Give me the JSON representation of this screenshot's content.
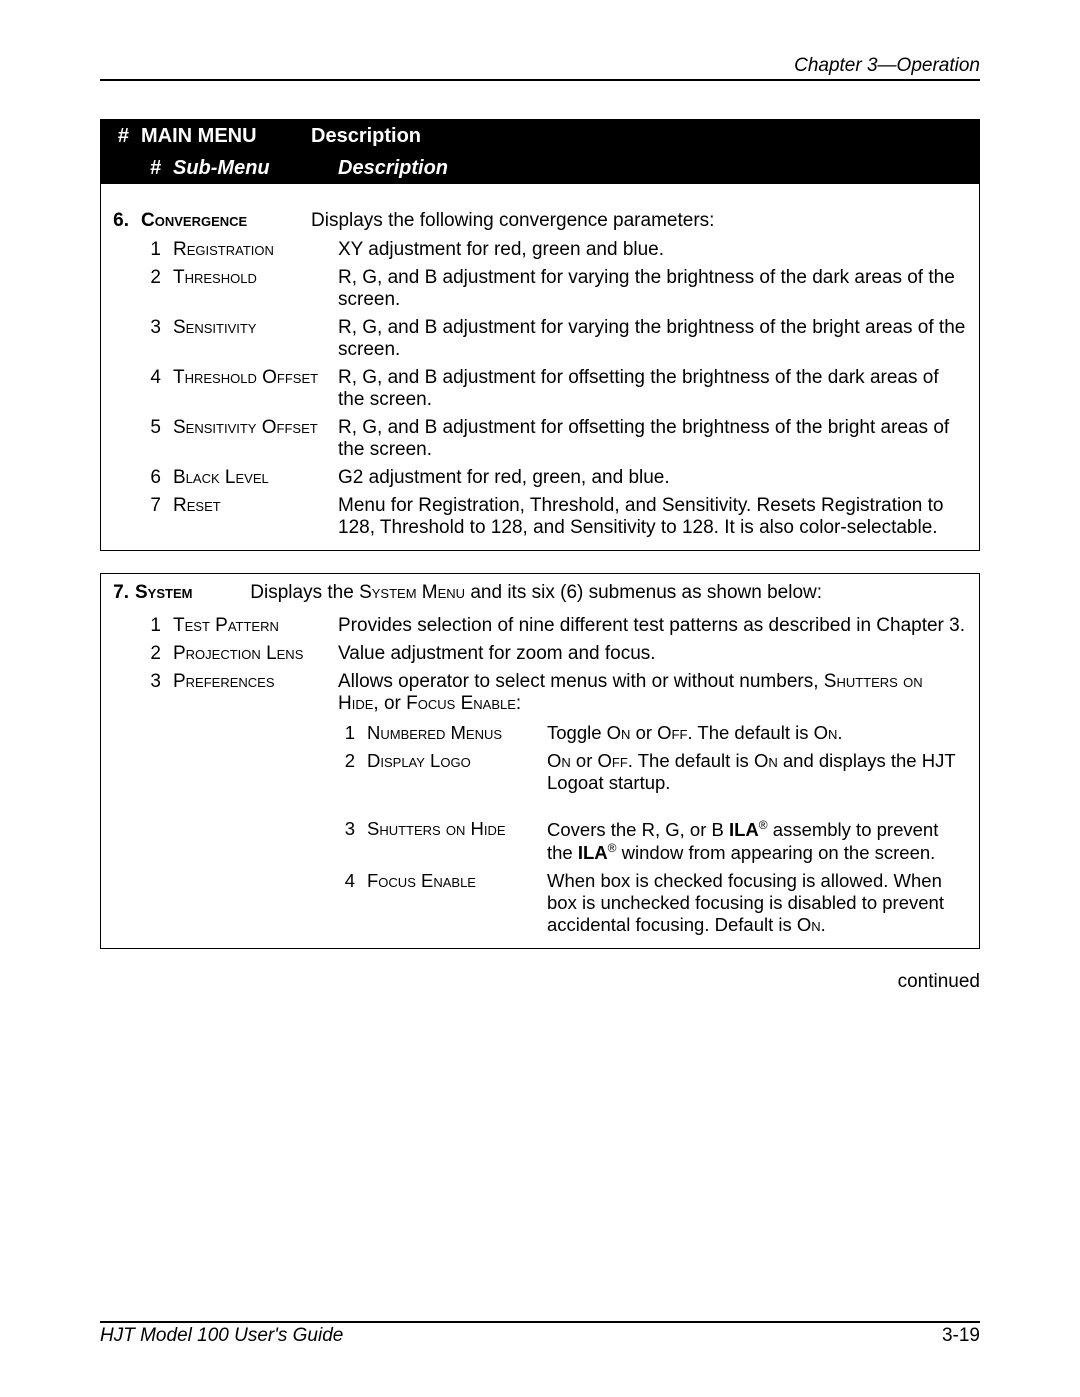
{
  "header": {
    "chapter": "Chapter 3—Operation"
  },
  "tableHead": {
    "c1": "#",
    "c2": "MAIN MENU",
    "c3": "Description",
    "s1": "#",
    "s2": "Sub-Menu",
    "s3": "Description"
  },
  "section6": {
    "num": "6.",
    "name": "Convergence",
    "desc": "Displays the following convergence parameters:",
    "items": [
      {
        "n": "1",
        "label": "Registration",
        "desc": "XY adjustment for red, green and blue."
      },
      {
        "n": "2",
        "label": "Threshold",
        "desc": "R, G, and B adjustment for varying the brightness of the dark areas of the screen."
      },
      {
        "n": "3",
        "label": "Sensitivity",
        "desc": "R, G, and B adjustment for varying the brightness of the bright areas of the screen."
      },
      {
        "n": "4",
        "label": "Threshold Offset",
        "desc": "R, G, and B adjustment for offsetting the brightness of the dark areas of the screen."
      },
      {
        "n": "5",
        "label": "Sensitivity Offset",
        "desc": "R, G, and B adjustment for offsetting the brightness of the bright areas of the screen."
      },
      {
        "n": "6",
        "label": "Black Level",
        "desc": "G2 adjustment for red, green, and blue."
      },
      {
        "n": "7",
        "label": "Reset",
        "desc": "Menu for Registration, Threshold, and Sensitivity. Resets Registration to 128, Threshold to 128, and Sensitivity to 128. It is also color-selectable."
      }
    ]
  },
  "section7": {
    "num": "7.",
    "name": "System",
    "desc_pre": "Displays the ",
    "desc_sc": "System Menu",
    "desc_post": " and its six (6) submenus as shown below:",
    "items": [
      {
        "n": "1",
        "label": "Test Pattern",
        "desc": "Provides selection of nine different test patterns as described in Chapter 3."
      },
      {
        "n": "2",
        "label": "Projection Lens",
        "desc": "Value adjustment for zoom and focus."
      }
    ],
    "prefs": {
      "n": "3",
      "label": "Preferences",
      "desc_pre": "Allows operator to select menus with or without numbers, ",
      "desc_sc1": "Shutters on Hide",
      "desc_mid": ", or ",
      "desc_sc2": "Focus Enable",
      "desc_post": ":",
      "subitems": [
        {
          "n": "1",
          "label": "Numbered Menus",
          "d_pre": "Toggle ",
          "d_sc1": "On",
          "d_mid1": " or ",
          "d_sc2": "Off",
          "d_mid2": ". The default is ",
          "d_sc3": "On",
          "d_post": "."
        },
        {
          "n": "2",
          "label": "Display Logo",
          "d_sc1": "On",
          "d_mid1": " or ",
          "d_sc2": "Off",
          "d_mid2": ". The default is ",
          "d_sc3": "On",
          "d_post": " and displays the HJT Logoat startup."
        },
        {
          "n": "3",
          "label": "Shutters on Hide",
          "d_pre": "Covers the R, G, or B ",
          "d_bold1": "ILA",
          "d_sup1": "®",
          "d_mid1": " assembly to prevent the ",
          "d_bold2": "ILA",
          "d_sup2": "®",
          "d_post": " window from appearing on the screen."
        },
        {
          "n": "4",
          "label": "Focus Enable",
          "d_pre": "When box is checked focusing is allowed. When box is unchecked focusing is disabled to prevent accidental focusing. Default is ",
          "d_sc1": "On",
          "d_post": "."
        }
      ]
    }
  },
  "continued": "continued",
  "footer": {
    "guide": "HJT Model 100 User's Guide",
    "page": "3-19"
  }
}
